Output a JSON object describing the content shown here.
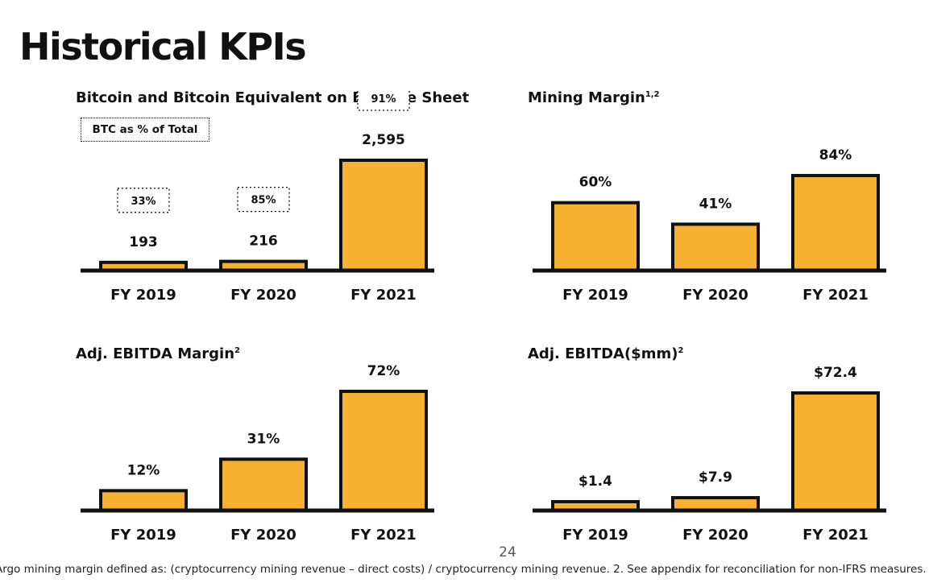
{
  "page": {
    "title": "Historical KPIs",
    "page_number": "24",
    "footnote": "Argo mining margin defined as: (cryptocurrency mining revenue – direct costs) / cryptocurrency mining revenue.   2. See appendix for reconciliation for non-IFRS measures."
  },
  "colors": {
    "bar_fill": "#f6b132",
    "outline": "#111111",
    "background": "#ffffff"
  },
  "chart_data": [
    {
      "id": "btc",
      "type": "bar",
      "title": "Bitcoin and Bitcoin Equivalent on Balance Sheet",
      "title_sup": "",
      "legend_box": "BTC as % of Total",
      "categories": [
        "FY 2019",
        "FY 2020",
        "FY 2021"
      ],
      "values": [
        193,
        216,
        2595
      ],
      "value_labels": [
        "193",
        "216",
        "2,595"
      ],
      "badges": [
        "33%",
        "85%",
        "91%"
      ],
      "ylim": [
        0,
        2595
      ]
    },
    {
      "id": "mining",
      "type": "bar",
      "title": "Mining Margin",
      "title_sup": "1,2",
      "categories": [
        "FY 2019",
        "FY 2020",
        "FY 2021"
      ],
      "values": [
        60,
        41,
        84
      ],
      "value_labels": [
        "60%",
        "41%",
        "84%"
      ],
      "ylim": [
        0,
        84
      ]
    },
    {
      "id": "ebitda_margin",
      "type": "bar",
      "title": "Adj. EBITDA Margin",
      "title_sup": "2",
      "categories": [
        "FY 2019",
        "FY 2020",
        "FY 2021"
      ],
      "values": [
        12,
        31,
        72
      ],
      "value_labels": [
        "12%",
        "31%",
        "72%"
      ],
      "ylim": [
        0,
        72
      ]
    },
    {
      "id": "ebitda",
      "type": "bar",
      "title": "Adj. EBITDA($mm)",
      "title_sup": "2",
      "categories": [
        "FY 2019",
        "FY 2020",
        "FY 2021"
      ],
      "values": [
        1.4,
        7.9,
        72.4
      ],
      "value_labels": [
        "$1.4",
        "$7.9",
        "$72.4"
      ],
      "ylim": [
        0,
        72.4
      ]
    }
  ]
}
